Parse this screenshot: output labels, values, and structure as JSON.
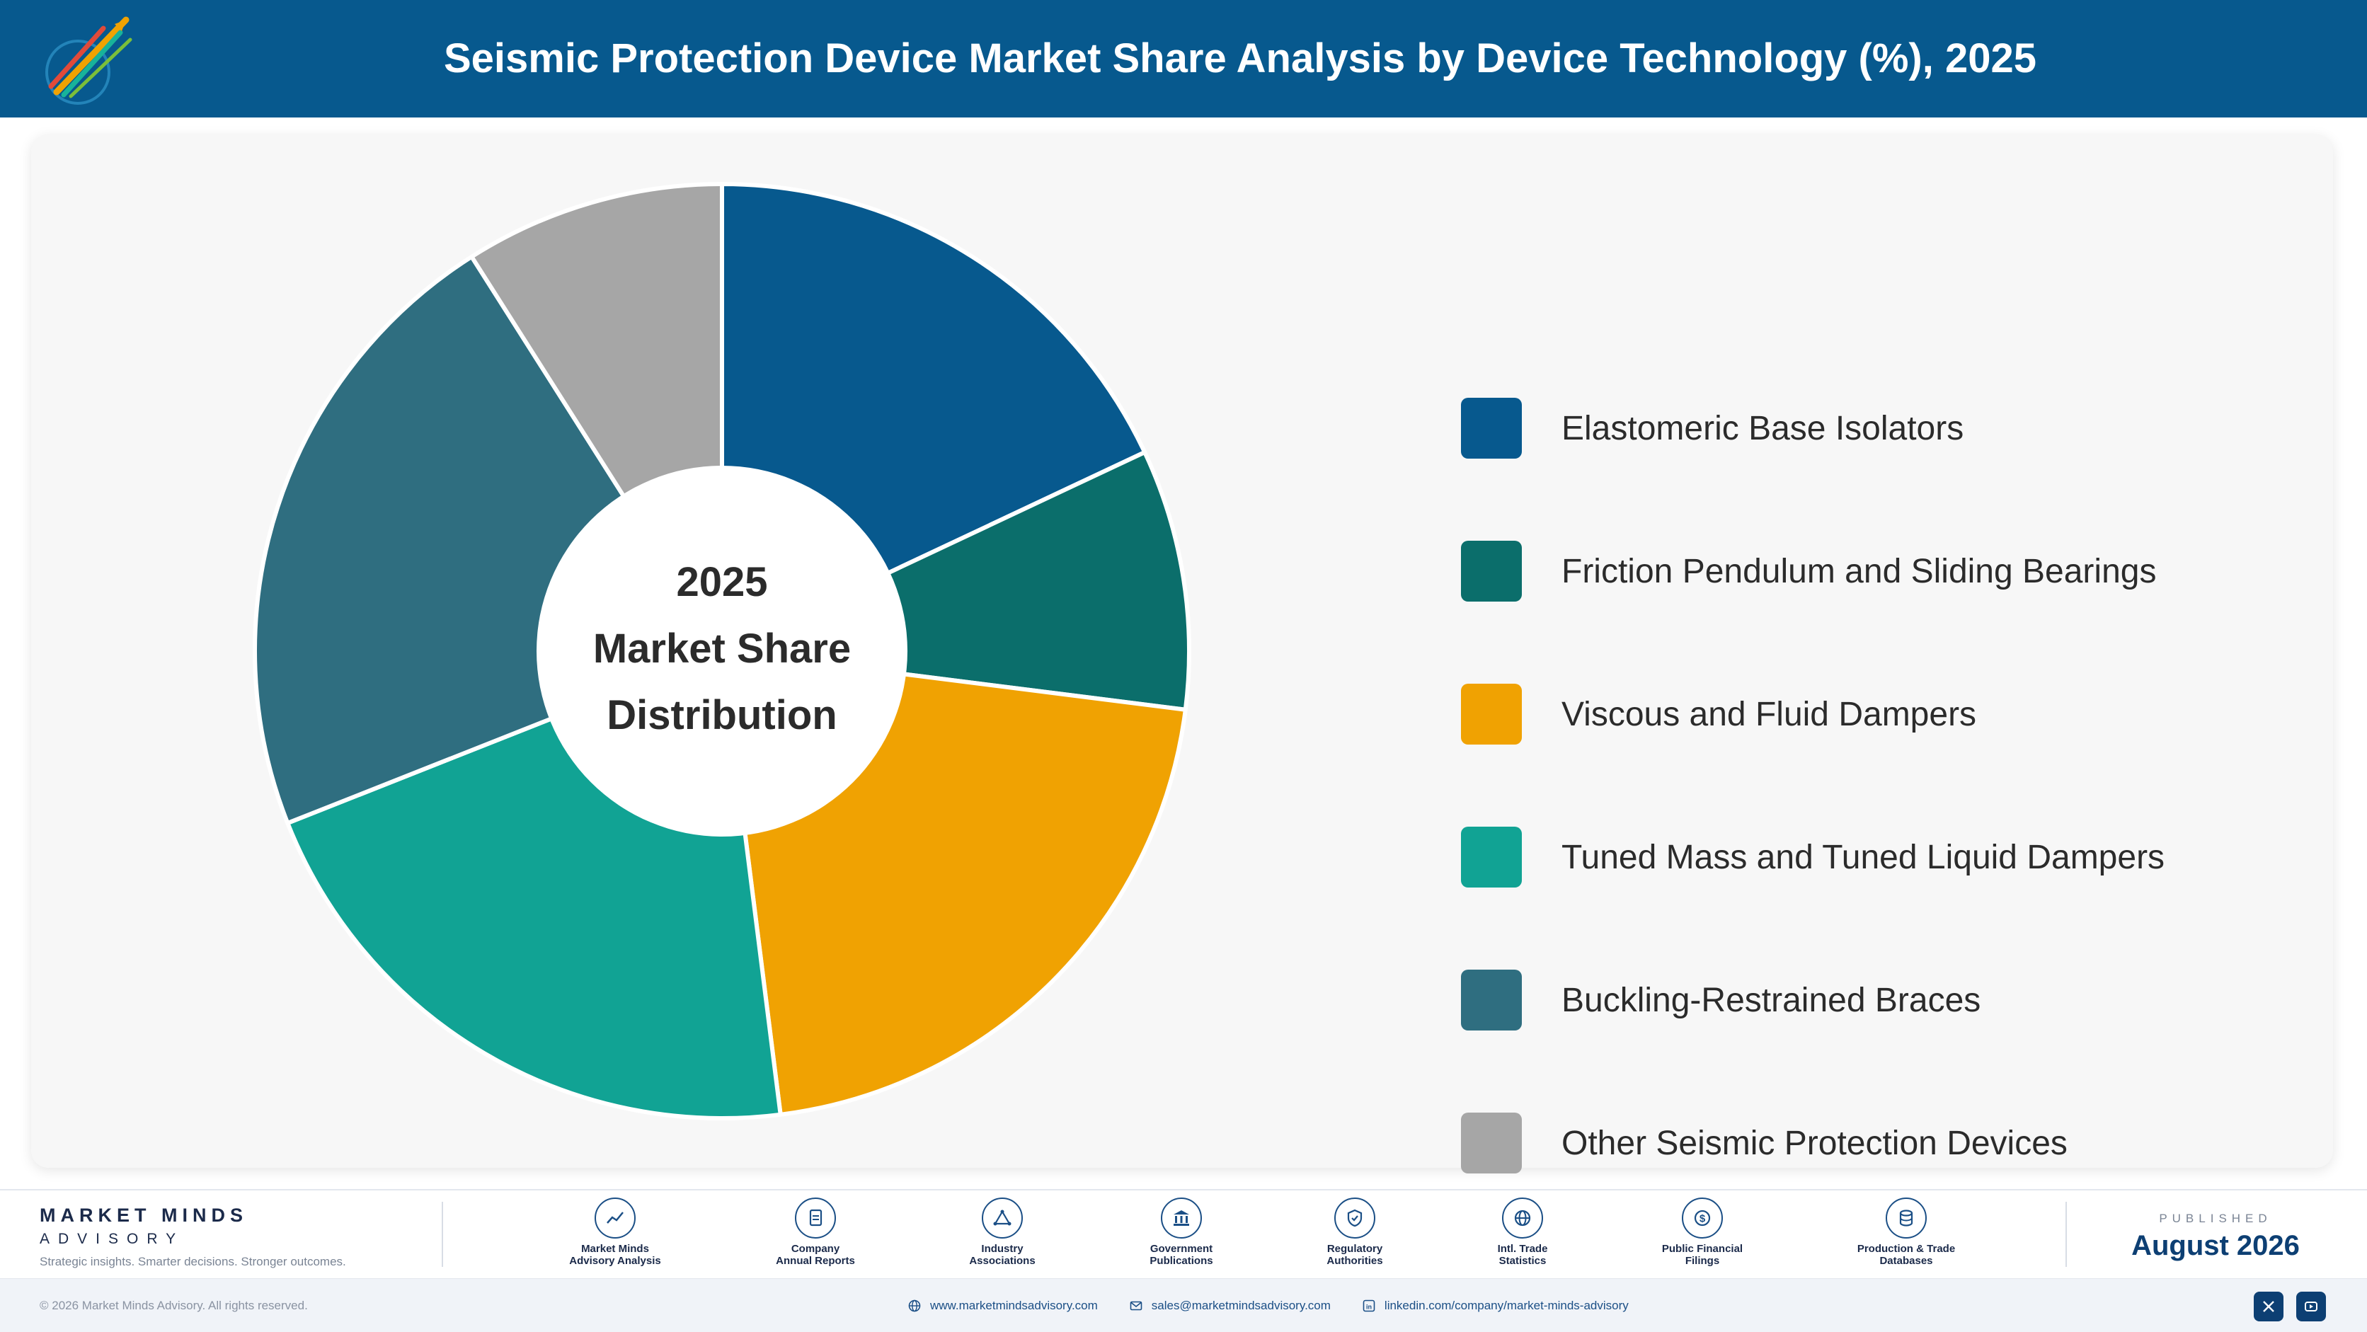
{
  "header": {
    "title": "Seismic Protection Device Market Share Analysis by Device Technology (%), 2025"
  },
  "chart_data": {
    "type": "pie",
    "style": "donut",
    "center_text": [
      "2025",
      "Market Share",
      "Distribution"
    ],
    "legend_position": "right",
    "categories": [
      "Elastomeric Base Isolators",
      "Friction Pendulum and Sliding Bearings",
      "Viscous and Fluid Dampers",
      "Tuned Mass and Tuned Liquid Dampers",
      "Buckling-Restrained Braces",
      "Other Seismic Protection Devices"
    ],
    "values": [
      18,
      9,
      21,
      21,
      22,
      9
    ],
    "colors": [
      "#07598e",
      "#0b6e6b",
      "#f0a202",
      "#11a394",
      "#2f6e80",
      "#a6a6a6"
    ]
  },
  "footer": {
    "brand_name": "MARKET MINDS",
    "brand_sub": "ADVISORY",
    "tagline": "Strategic insights. Smarter decisions. Stronger outcomes.",
    "sources": [
      {
        "label": "Market Minds\nAdvisory Analysis",
        "icon": "chart-line-icon"
      },
      {
        "label": "Company\nAnnual Reports",
        "icon": "document-icon"
      },
      {
        "label": "Industry\nAssociations",
        "icon": "network-icon"
      },
      {
        "label": "Government\nPublications",
        "icon": "bank-icon"
      },
      {
        "label": "Regulatory\nAuthorities",
        "icon": "shield-check-icon"
      },
      {
        "label": "Intl. Trade\nStatistics",
        "icon": "globe-icon"
      },
      {
        "label": "Public Financial\nFilings",
        "icon": "dollar-icon"
      },
      {
        "label": "Production & Trade\nDatabases",
        "icon": "database-icon"
      }
    ],
    "published_label": "PUBLISHED",
    "published_date": "August 2026",
    "copyright": "© 2026 Market Minds Advisory. All rights reserved.",
    "website": "www.marketmindsadvisory.com",
    "email": "sales@marketmindsadvisory.com",
    "linkedin": "linkedin.com/company/market-minds-advisory"
  }
}
